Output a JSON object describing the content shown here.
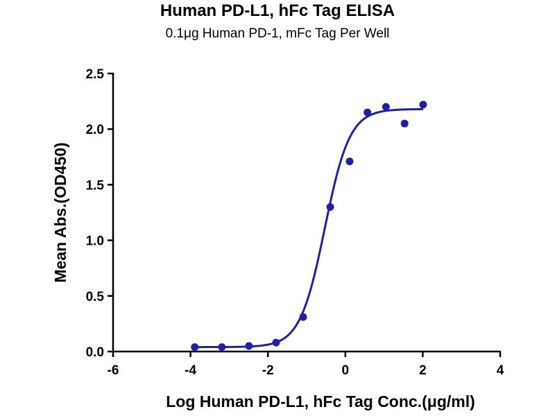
{
  "chart_data": {
    "type": "scatter",
    "title": "Human PD-L1, hFc Tag ELISA",
    "subtitle": "0.1μg Human PD-1, mFc Tag Per Well",
    "xlabel": "Log Human PD-L1, hFc Tag Conc.(μg/ml)",
    "ylabel": "Mean Abs.(OD450)",
    "xlim": [
      -6,
      4
    ],
    "ylim": [
      0,
      2.5
    ],
    "x_ticks": [
      "-6",
      "-4",
      "-2",
      "0",
      "2",
      "4"
    ],
    "y_ticks": [
      "0.0",
      "0.5",
      "1.0",
      "1.5",
      "2.0",
      "2.5"
    ],
    "grid": false,
    "series": [
      {
        "color": "#1f1fa8",
        "x": [
          -3.89,
          -3.19,
          -2.49,
          -1.79,
          -1.09,
          -0.39,
          0.11,
          0.57,
          1.05,
          1.53,
          2.01
        ],
        "y": [
          0.04,
          0.04,
          0.05,
          0.08,
          0.31,
          1.3,
          1.71,
          2.15,
          2.2,
          2.05,
          2.22
        ]
      }
    ],
    "fit": {
      "type": "sigmoid",
      "color": "#1f1fa8",
      "bottom": 0.04,
      "top": 2.18,
      "log_ec50": -0.53,
      "hill_slope": 1.35,
      "x_range": [
        -3.89,
        2.01
      ]
    }
  }
}
